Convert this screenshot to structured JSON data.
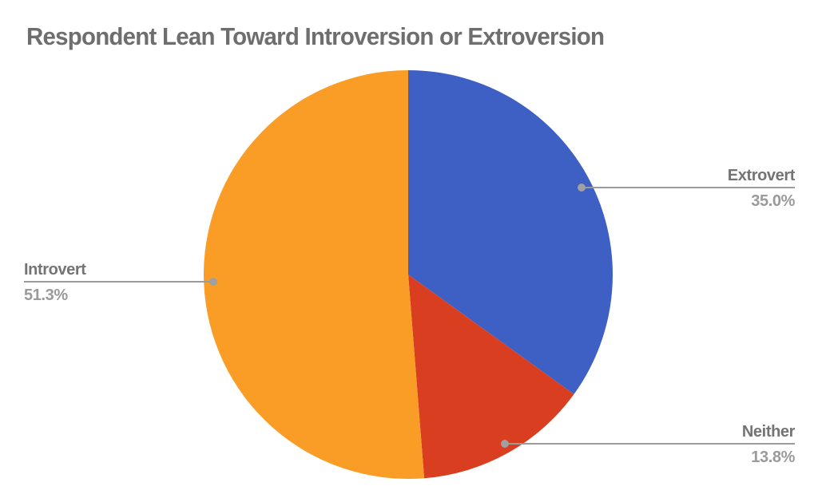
{
  "title": "Respondent Lean Toward Introversion or Extroversion",
  "chart_data": {
    "type": "pie",
    "title": "Respondent Lean Toward Introversion or Extroversion",
    "start_angle": "top",
    "direction": "clockwise",
    "slices": [
      {
        "label": "Extrovert",
        "value": 35.0,
        "display": "35.0%",
        "color": "#3E60C4"
      },
      {
        "label": "Neither",
        "value": 13.8,
        "display": "13.8%",
        "color": "#D93E20"
      },
      {
        "label": "Introvert",
        "value": 51.3,
        "display": "51.3%",
        "color": "#F99D27"
      }
    ],
    "labels_format": "percent",
    "legend_position": "outside-callouts",
    "label_color": "#747474",
    "percent_color": "#9a9a9a",
    "leader_line_color": "#9b9b9b",
    "title_color": "#6e6e6e",
    "background_color": "#ffffff"
  },
  "callouts": {
    "extrovert": {
      "label": "Extrovert",
      "pct": "35.0%"
    },
    "introvert": {
      "label": "Introvert",
      "pct": "51.3%"
    },
    "neither": {
      "label": "Neither",
      "pct": "13.8%"
    }
  }
}
